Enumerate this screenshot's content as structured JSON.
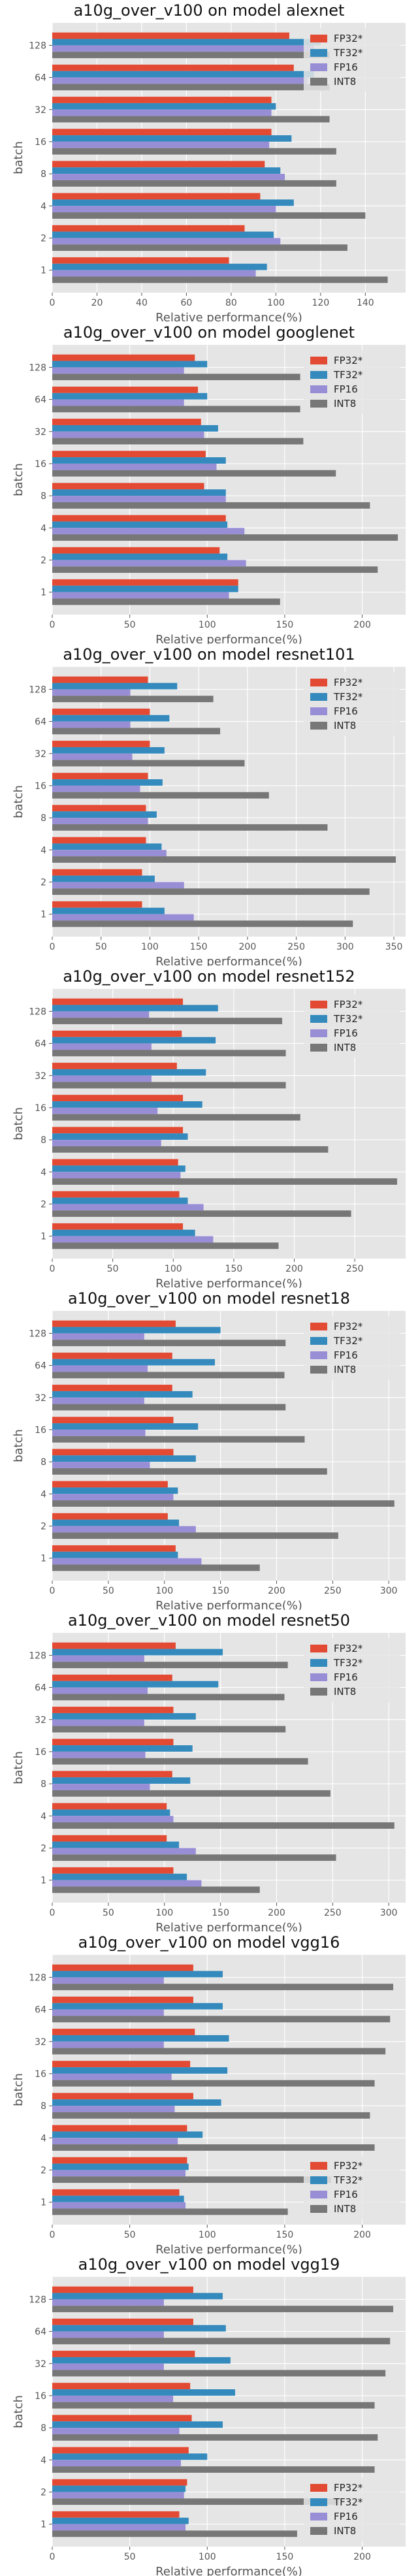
{
  "page": {
    "background": "#ffffff"
  },
  "style": {
    "plot_background": "#e5e5e5",
    "grid_color": "#ffffff",
    "series_colors": [
      "#e24a33",
      "#348abd",
      "#988ed5",
      "#777777"
    ]
  },
  "chart_data": [
    {
      "type": "bar",
      "orientation": "horizontal",
      "title": "a10g_over_v100 on model alexnet",
      "xlabel": "Relative performance(%)",
      "ylabel": "batch",
      "categories": [
        "1",
        "2",
        "4",
        "8",
        "16",
        "32",
        "64",
        "128"
      ],
      "xlim": [
        0,
        158
      ],
      "xticks": [
        0,
        20,
        40,
        60,
        80,
        100,
        120,
        140
      ],
      "grid": true,
      "legend": "top-right",
      "series": [
        {
          "name": "FP32*",
          "values": [
            79,
            86,
            93,
            95,
            98,
            98,
            108,
            106
          ]
        },
        {
          "name": "TF32*",
          "values": [
            96,
            99,
            108,
            102,
            107,
            100,
            117,
            120
          ]
        },
        {
          "name": "FP16",
          "values": [
            91,
            102,
            100,
            104,
            97,
            98,
            114,
            117
          ]
        },
        {
          "name": "INT8",
          "values": [
            150,
            132,
            140,
            127,
            127,
            124,
            124,
            124
          ]
        }
      ]
    },
    {
      "type": "bar",
      "orientation": "horizontal",
      "title": "a10g_over_v100 on model googlenet",
      "xlabel": "Relative performance(%)",
      "ylabel": "batch",
      "categories": [
        "1",
        "2",
        "4",
        "8",
        "16",
        "32",
        "64",
        "128"
      ],
      "xlim": [
        0,
        228
      ],
      "xticks": [
        0,
        50,
        100,
        150,
        200
      ],
      "grid": true,
      "legend": "top-right",
      "series": [
        {
          "name": "FP32*",
          "values": [
            120,
            108,
            112,
            98,
            99,
            96,
            94,
            92
          ]
        },
        {
          "name": "TF32*",
          "values": [
            120,
            113,
            113,
            112,
            112,
            107,
            100,
            100
          ]
        },
        {
          "name": "FP16",
          "values": [
            114,
            125,
            124,
            112,
            106,
            98,
            85,
            85
          ]
        },
        {
          "name": "INT8",
          "values": [
            147,
            210,
            223,
            205,
            183,
            162,
            160,
            160
          ]
        }
      ]
    },
    {
      "type": "bar",
      "orientation": "horizontal",
      "title": "a10g_over_v100 on model resnet101",
      "xlabel": "Relative performance(%)",
      "ylabel": "batch",
      "categories": [
        "1",
        "2",
        "4",
        "8",
        "16",
        "32",
        "64",
        "128"
      ],
      "xlim": [
        0,
        362
      ],
      "xticks": [
        0,
        50,
        100,
        150,
        200,
        250,
        300,
        350
      ],
      "grid": true,
      "legend": "top-right",
      "series": [
        {
          "name": "FP32*",
          "values": [
            92,
            92,
            96,
            96,
            98,
            100,
            100,
            98
          ]
        },
        {
          "name": "TF32*",
          "values": [
            115,
            105,
            112,
            107,
            113,
            115,
            120,
            128
          ]
        },
        {
          "name": "FP16",
          "values": [
            145,
            135,
            117,
            98,
            90,
            82,
            80,
            80
          ]
        },
        {
          "name": "INT8",
          "values": [
            308,
            325,
            352,
            282,
            222,
            197,
            172,
            165
          ]
        }
      ]
    },
    {
      "type": "bar",
      "orientation": "horizontal",
      "title": "a10g_over_v100 on model resnet152",
      "xlabel": "Relative performance(%)",
      "ylabel": "batch",
      "categories": [
        "1",
        "2",
        "4",
        "8",
        "16",
        "32",
        "64",
        "128"
      ],
      "xlim": [
        0,
        292
      ],
      "xticks": [
        0,
        50,
        100,
        150,
        200,
        250
      ],
      "grid": true,
      "legend": "top-right",
      "series": [
        {
          "name": "FP32*",
          "values": [
            108,
            105,
            104,
            108,
            108,
            103,
            107,
            108
          ]
        },
        {
          "name": "TF32*",
          "values": [
            118,
            112,
            110,
            112,
            124,
            127,
            135,
            137
          ]
        },
        {
          "name": "FP16",
          "values": [
            133,
            125,
            106,
            90,
            87,
            82,
            82,
            80
          ]
        },
        {
          "name": "INT8",
          "values": [
            187,
            247,
            285,
            228,
            205,
            193,
            193,
            190
          ]
        }
      ]
    },
    {
      "type": "bar",
      "orientation": "horizontal",
      "title": "a10g_over_v100 on model resnet18",
      "xlabel": "Relative performance(%)",
      "ylabel": "batch",
      "categories": [
        "1",
        "2",
        "4",
        "8",
        "16",
        "32",
        "64",
        "128"
      ],
      "xlim": [
        0,
        315
      ],
      "xticks": [
        0,
        50,
        100,
        150,
        200,
        250,
        300
      ],
      "grid": true,
      "legend": "top-right",
      "series": [
        {
          "name": "FP32*",
          "values": [
            110,
            103,
            103,
            108,
            108,
            107,
            107,
            110
          ]
        },
        {
          "name": "TF32*",
          "values": [
            112,
            113,
            112,
            128,
            130,
            125,
            145,
            150
          ]
        },
        {
          "name": "FP16",
          "values": [
            133,
            128,
            108,
            87,
            83,
            82,
            85,
            82
          ]
        },
        {
          "name": "INT8",
          "values": [
            185,
            255,
            305,
            245,
            225,
            208,
            207,
            208
          ]
        }
      ]
    },
    {
      "type": "bar",
      "orientation": "horizontal",
      "title": "a10g_over_v100 on model resnet50",
      "xlabel": "Relative performance(%)",
      "ylabel": "batch",
      "categories": [
        "1",
        "2",
        "4",
        "8",
        "16",
        "32",
        "64",
        "128"
      ],
      "xlim": [
        0,
        315
      ],
      "xticks": [
        0,
        50,
        100,
        150,
        200,
        250,
        300
      ],
      "grid": true,
      "legend": "top-right",
      "series": [
        {
          "name": "FP32*",
          "values": [
            108,
            102,
            102,
            107,
            108,
            108,
            107,
            110
          ]
        },
        {
          "name": "TF32*",
          "values": [
            120,
            113,
            105,
            123,
            125,
            128,
            148,
            152
          ]
        },
        {
          "name": "FP16",
          "values": [
            133,
            128,
            108,
            87,
            83,
            82,
            85,
            82
          ]
        },
        {
          "name": "INT8",
          "values": [
            185,
            253,
            305,
            248,
            228,
            208,
            207,
            210
          ]
        }
      ]
    },
    {
      "type": "bar",
      "orientation": "horizontal",
      "title": "a10g_over_v100 on model vgg16",
      "xlabel": "Relative performance(%)",
      "ylabel": "batch",
      "categories": [
        "1",
        "2",
        "4",
        "8",
        "16",
        "32",
        "64",
        "128"
      ],
      "xlim": [
        0,
        228
      ],
      "xticks": [
        0,
        50,
        100,
        150,
        200
      ],
      "grid": true,
      "legend": "bottom-right",
      "series": [
        {
          "name": "FP32*",
          "values": [
            82,
            87,
            87,
            91,
            89,
            92,
            91,
            91
          ]
        },
        {
          "name": "TF32*",
          "values": [
            85,
            88,
            97,
            109,
            113,
            114,
            110,
            110
          ]
        },
        {
          "name": "FP16",
          "values": [
            86,
            86,
            81,
            79,
            77,
            72,
            72,
            72
          ]
        },
        {
          "name": "INT8",
          "values": [
            152,
            180,
            208,
            205,
            208,
            215,
            218,
            220
          ]
        }
      ]
    },
    {
      "type": "bar",
      "orientation": "horizontal",
      "title": "a10g_over_v100 on model vgg19",
      "xlabel": "Relative performance(%)",
      "ylabel": "batch",
      "categories": [
        "1",
        "2",
        "4",
        "8",
        "16",
        "32",
        "64",
        "128"
      ],
      "xlim": [
        0,
        228
      ],
      "xticks": [
        0,
        50,
        100,
        150,
        200
      ],
      "grid": true,
      "legend": "bottom-right",
      "series": [
        {
          "name": "FP32*",
          "values": [
            82,
            87,
            88,
            90,
            89,
            92,
            91,
            91
          ]
        },
        {
          "name": "TF32*",
          "values": [
            88,
            86,
            100,
            110,
            118,
            115,
            112,
            110
          ]
        },
        {
          "name": "FP16",
          "values": [
            86,
            85,
            83,
            82,
            78,
            72,
            72,
            72
          ]
        },
        {
          "name": "INT8",
          "values": [
            158,
            185,
            208,
            210,
            208,
            215,
            218,
            220
          ]
        }
      ]
    }
  ]
}
